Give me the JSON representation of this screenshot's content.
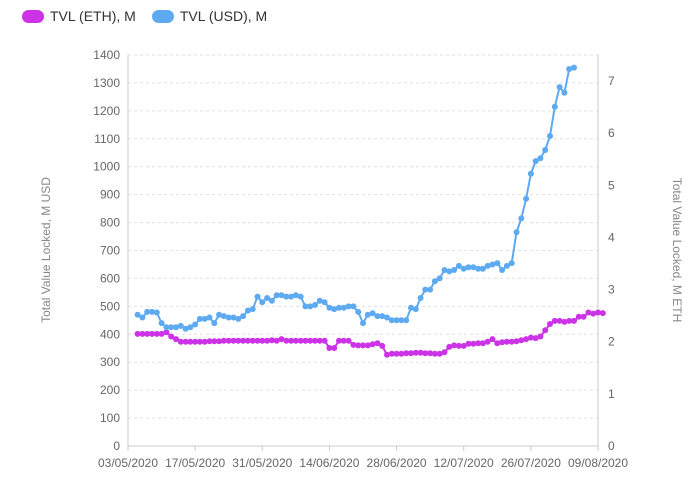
{
  "legend": {
    "eth_label": "TVL (ETH), M",
    "usd_label": "TVL (USD), M"
  },
  "colors": {
    "eth": "#cc33e6",
    "usd": "#5eaaf0",
    "grid": "#e0e0e0",
    "axis": "#ccc",
    "text": "#666"
  },
  "chart_data": {
    "type": "line",
    "title": "",
    "xlabel": "",
    "ylabel_left": "Total Value Locked, M USD",
    "ylabel_right": "Total Value Locked, M ETH",
    "ylim_left": [
      0,
      1400
    ],
    "ylim_right": [
      0,
      7.5
    ],
    "yticks_left": [
      0,
      100,
      200,
      300,
      400,
      500,
      600,
      700,
      800,
      900,
      1000,
      1100,
      1200,
      1300,
      1400
    ],
    "yticks_right": [
      0,
      1,
      2,
      3,
      4,
      5,
      6,
      7
    ],
    "x_ticks": [
      "03/05/2020",
      "17/05/2020",
      "31/05/2020",
      "14/06/2020",
      "28/06/2020",
      "12/07/2020",
      "26/07/2020",
      "09/08/2020"
    ],
    "x_start_date": "2020-05-03",
    "x_end_date": "2020-08-09",
    "grid": true,
    "legend_position": "top-left",
    "series": [
      {
        "name": "TVL (ETH), M",
        "axis": "right",
        "color": "#cc33e6",
        "points": [
          [
            "2020-05-05",
            2.15
          ],
          [
            "2020-05-06",
            2.15
          ],
          [
            "2020-05-07",
            2.15
          ],
          [
            "2020-05-08",
            2.15
          ],
          [
            "2020-05-09",
            2.15
          ],
          [
            "2020-05-10",
            2.15
          ],
          [
            "2020-05-11",
            2.18
          ],
          [
            "2020-05-12",
            2.1
          ],
          [
            "2020-05-13",
            2.05
          ],
          [
            "2020-05-14",
            2.0
          ],
          [
            "2020-05-15",
            2.0
          ],
          [
            "2020-05-16",
            2.0
          ],
          [
            "2020-05-17",
            2.0
          ],
          [
            "2020-05-18",
            2.0
          ],
          [
            "2020-05-19",
            2.0
          ],
          [
            "2020-05-20",
            2.01
          ],
          [
            "2020-05-21",
            2.01
          ],
          [
            "2020-05-22",
            2.01
          ],
          [
            "2020-05-23",
            2.02
          ],
          [
            "2020-05-24",
            2.02
          ],
          [
            "2020-05-25",
            2.02
          ],
          [
            "2020-05-26",
            2.02
          ],
          [
            "2020-05-27",
            2.02
          ],
          [
            "2020-05-28",
            2.02
          ],
          [
            "2020-05-29",
            2.02
          ],
          [
            "2020-05-30",
            2.02
          ],
          [
            "2020-05-31",
            2.02
          ],
          [
            "2020-06-01",
            2.02
          ],
          [
            "2020-06-02",
            2.03
          ],
          [
            "2020-06-03",
            2.02
          ],
          [
            "2020-06-04",
            2.05
          ],
          [
            "2020-06-05",
            2.02
          ],
          [
            "2020-06-06",
            2.02
          ],
          [
            "2020-06-07",
            2.02
          ],
          [
            "2020-06-08",
            2.02
          ],
          [
            "2020-06-09",
            2.02
          ],
          [
            "2020-06-10",
            2.02
          ],
          [
            "2020-06-11",
            2.02
          ],
          [
            "2020-06-12",
            2.02
          ],
          [
            "2020-06-13",
            2.02
          ],
          [
            "2020-06-14",
            1.88
          ],
          [
            "2020-06-15",
            1.88
          ],
          [
            "2020-06-16",
            2.02
          ],
          [
            "2020-06-17",
            2.02
          ],
          [
            "2020-06-18",
            2.02
          ],
          [
            "2020-06-19",
            1.94
          ],
          [
            "2020-06-20",
            1.93
          ],
          [
            "2020-06-21",
            1.93
          ],
          [
            "2020-06-22",
            1.93
          ],
          [
            "2020-06-23",
            1.95
          ],
          [
            "2020-06-24",
            1.97
          ],
          [
            "2020-06-25",
            1.92
          ],
          [
            "2020-06-26",
            1.75
          ],
          [
            "2020-06-27",
            1.77
          ],
          [
            "2020-06-28",
            1.77
          ],
          [
            "2020-06-29",
            1.77
          ],
          [
            "2020-06-30",
            1.78
          ],
          [
            "2020-07-01",
            1.78
          ],
          [
            "2020-07-02",
            1.79
          ],
          [
            "2020-07-03",
            1.79
          ],
          [
            "2020-07-04",
            1.78
          ],
          [
            "2020-07-05",
            1.78
          ],
          [
            "2020-07-06",
            1.77
          ],
          [
            "2020-07-07",
            1.77
          ],
          [
            "2020-07-08",
            1.8
          ],
          [
            "2020-07-09",
            1.9
          ],
          [
            "2020-07-10",
            1.93
          ],
          [
            "2020-07-11",
            1.92
          ],
          [
            "2020-07-12",
            1.92
          ],
          [
            "2020-07-13",
            1.96
          ],
          [
            "2020-07-14",
            1.96
          ],
          [
            "2020-07-15",
            1.97
          ],
          [
            "2020-07-16",
            1.97
          ],
          [
            "2020-07-17",
            2.0
          ],
          [
            "2020-07-18",
            2.05
          ],
          [
            "2020-07-19",
            1.97
          ],
          [
            "2020-07-20",
            1.99
          ],
          [
            "2020-07-21",
            2.0
          ],
          [
            "2020-07-22",
            2.0
          ],
          [
            "2020-07-23",
            2.01
          ],
          [
            "2020-07-24",
            2.03
          ],
          [
            "2020-07-25",
            2.05
          ],
          [
            "2020-07-26",
            2.08
          ],
          [
            "2020-07-27",
            2.07
          ],
          [
            "2020-07-28",
            2.1
          ],
          [
            "2020-07-29",
            2.22
          ],
          [
            "2020-07-30",
            2.34
          ],
          [
            "2020-07-31",
            2.4
          ],
          [
            "2020-08-01",
            2.4
          ],
          [
            "2020-08-02",
            2.38
          ],
          [
            "2020-08-03",
            2.4
          ],
          [
            "2020-08-04",
            2.4
          ],
          [
            "2020-08-05",
            2.48
          ],
          [
            "2020-08-06",
            2.48
          ],
          [
            "2020-08-07",
            2.56
          ],
          [
            "2020-08-08",
            2.54
          ],
          [
            "2020-08-09",
            2.56
          ],
          [
            "2020-08-10",
            2.55
          ]
        ]
      },
      {
        "name": "TVL (USD), M",
        "axis": "left",
        "color": "#5eaaf0",
        "points": [
          [
            "2020-05-05",
            470
          ],
          [
            "2020-05-06",
            460
          ],
          [
            "2020-05-07",
            480
          ],
          [
            "2020-05-08",
            480
          ],
          [
            "2020-05-09",
            478
          ],
          [
            "2020-05-10",
            440
          ],
          [
            "2020-05-11",
            425
          ],
          [
            "2020-05-12",
            425
          ],
          [
            "2020-05-13",
            425
          ],
          [
            "2020-05-14",
            430
          ],
          [
            "2020-05-15",
            420
          ],
          [
            "2020-05-16",
            425
          ],
          [
            "2020-05-17",
            435
          ],
          [
            "2020-05-18",
            455
          ],
          [
            "2020-05-19",
            455
          ],
          [
            "2020-05-20",
            460
          ],
          [
            "2020-05-21",
            440
          ],
          [
            "2020-05-22",
            470
          ],
          [
            "2020-05-23",
            465
          ],
          [
            "2020-05-24",
            460
          ],
          [
            "2020-05-25",
            460
          ],
          [
            "2020-05-26",
            455
          ],
          [
            "2020-05-27",
            465
          ],
          [
            "2020-05-28",
            485
          ],
          [
            "2020-05-29",
            490
          ],
          [
            "2020-05-30",
            535
          ],
          [
            "2020-05-31",
            515
          ],
          [
            "2020-06-01",
            530
          ],
          [
            "2020-06-02",
            520
          ],
          [
            "2020-06-03",
            540
          ],
          [
            "2020-06-04",
            540
          ],
          [
            "2020-06-05",
            535
          ],
          [
            "2020-06-06",
            535
          ],
          [
            "2020-06-07",
            540
          ],
          [
            "2020-06-08",
            535
          ],
          [
            "2020-06-09",
            500
          ],
          [
            "2020-06-10",
            500
          ],
          [
            "2020-06-11",
            505
          ],
          [
            "2020-06-12",
            520
          ],
          [
            "2020-06-13",
            515
          ],
          [
            "2020-06-14",
            495
          ],
          [
            "2020-06-15",
            490
          ],
          [
            "2020-06-16",
            495
          ],
          [
            "2020-06-17",
            495
          ],
          [
            "2020-06-18",
            500
          ],
          [
            "2020-06-19",
            500
          ],
          [
            "2020-06-20",
            480
          ],
          [
            "2020-06-21",
            440
          ],
          [
            "2020-06-22",
            470
          ],
          [
            "2020-06-23",
            475
          ],
          [
            "2020-06-24",
            465
          ],
          [
            "2020-06-25",
            465
          ],
          [
            "2020-06-26",
            460
          ],
          [
            "2020-06-27",
            450
          ],
          [
            "2020-06-28",
            450
          ],
          [
            "2020-06-29",
            450
          ],
          [
            "2020-06-30",
            450
          ],
          [
            "2020-07-01",
            495
          ],
          [
            "2020-07-02",
            490
          ],
          [
            "2020-07-03",
            530
          ],
          [
            "2020-07-04",
            560
          ],
          [
            "2020-07-05",
            560
          ],
          [
            "2020-07-06",
            590
          ],
          [
            "2020-07-07",
            600
          ],
          [
            "2020-07-08",
            630
          ],
          [
            "2020-07-09",
            625
          ],
          [
            "2020-07-10",
            630
          ],
          [
            "2020-07-11",
            645
          ],
          [
            "2020-07-12",
            635
          ],
          [
            "2020-07-13",
            640
          ],
          [
            "2020-07-14",
            640
          ],
          [
            "2020-07-15",
            635
          ],
          [
            "2020-07-16",
            635
          ],
          [
            "2020-07-17",
            645
          ],
          [
            "2020-07-18",
            650
          ],
          [
            "2020-07-19",
            655
          ],
          [
            "2020-07-20",
            630
          ],
          [
            "2020-07-21",
            645
          ],
          [
            "2020-07-22",
            655
          ],
          [
            "2020-07-23",
            765
          ],
          [
            "2020-07-24",
            815
          ],
          [
            "2020-07-25",
            885
          ],
          [
            "2020-07-26",
            975
          ],
          [
            "2020-07-27",
            1020
          ],
          [
            "2020-07-28",
            1030
          ],
          [
            "2020-07-29",
            1060
          ],
          [
            "2020-07-30",
            1110
          ],
          [
            "2020-07-31",
            1215
          ],
          [
            "2020-08-01",
            1285
          ],
          [
            "2020-08-02",
            1265
          ],
          [
            "2020-08-03",
            1350
          ],
          [
            "2020-08-04",
            1355
          ]
        ]
      }
    ]
  }
}
